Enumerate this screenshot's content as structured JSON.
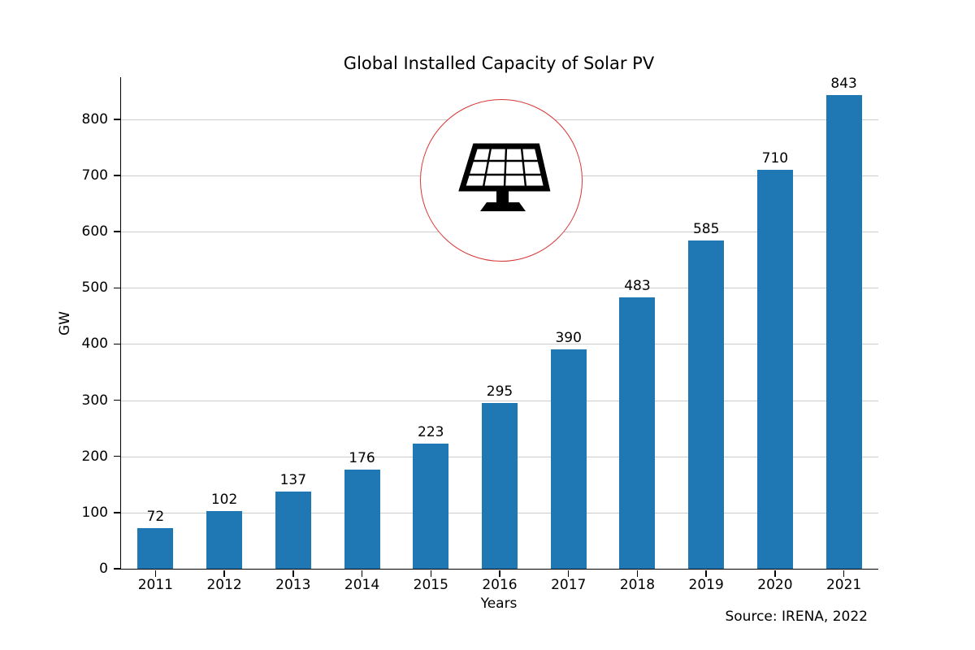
{
  "source_text": "Source: IRENA, 2022",
  "icon": {
    "name": "solar-panel-icon",
    "circle_color": "#d93636",
    "glyph_color": "#000000"
  },
  "chart_data": {
    "type": "bar",
    "title": "Global Installed Capacity of Solar PV",
    "xlabel": "Years",
    "ylabel": "GW",
    "categories": [
      "2011",
      "2012",
      "2013",
      "2014",
      "2015",
      "2016",
      "2017",
      "2018",
      "2019",
      "2020",
      "2021"
    ],
    "values": [
      72,
      102,
      137,
      176,
      223,
      295,
      390,
      483,
      585,
      710,
      843
    ],
    "yticks": [
      0,
      100,
      200,
      300,
      400,
      500,
      600,
      700,
      800
    ],
    "ylim": [
      0,
      875
    ],
    "bar_color": "#1f77b4",
    "grid": true,
    "gridline_color": "#cccccc",
    "legend": "none",
    "annotation": "solar panel pictogram inside red circle outline, upper center of plot"
  }
}
